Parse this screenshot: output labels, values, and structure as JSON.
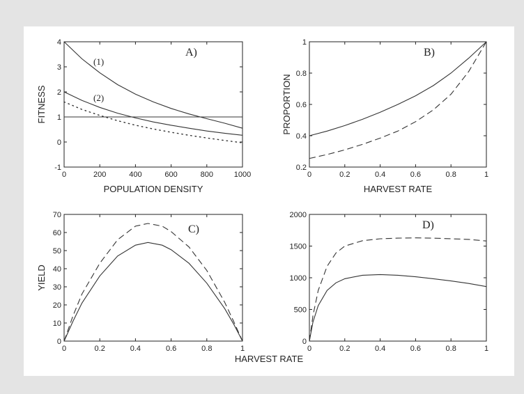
{
  "figure": {
    "shared_xlabel": "HARVEST RATE"
  },
  "chart_data": [
    {
      "panel": "A)",
      "type": "line",
      "xlabel": "POPULATION DENSITY",
      "ylabel": "FITNESS",
      "xlim": [
        0,
        1000
      ],
      "ylim": [
        -1,
        4
      ],
      "xticks": [
        "0",
        "200",
        "400",
        "600",
        "800",
        "1000"
      ],
      "yticks": [
        "-1",
        "0",
        "1",
        "2",
        "3",
        "4"
      ],
      "curve_labels": [
        "(1)",
        "(2)"
      ],
      "series": [
        {
          "name": "(1)",
          "style": "solid",
          "x": [
            0,
            100,
            200,
            300,
            400,
            500,
            600,
            700,
            800,
            900,
            1000
          ],
          "y": [
            4.0,
            3.32,
            2.76,
            2.29,
            1.91,
            1.6,
            1.34,
            1.12,
            0.93,
            0.75,
            0.55
          ]
        },
        {
          "name": "(2)",
          "style": "solid",
          "x": [
            0,
            100,
            200,
            300,
            400,
            500,
            600,
            700,
            800,
            900,
            1000
          ],
          "y": [
            2.0,
            1.66,
            1.38,
            1.15,
            0.96,
            0.8,
            0.67,
            0.55,
            0.44,
            0.35,
            0.27
          ]
        },
        {
          "style": "dotted",
          "x": [
            0,
            100,
            200,
            300,
            400,
            500,
            600,
            700,
            800,
            900,
            1000
          ],
          "y": [
            1.6,
            1.3,
            1.06,
            0.85,
            0.67,
            0.52,
            0.39,
            0.27,
            0.16,
            0.06,
            -0.03
          ]
        },
        {
          "style": "solid",
          "x": [
            0,
            1000
          ],
          "y": [
            1.0,
            1.0
          ]
        }
      ]
    },
    {
      "panel": "B)",
      "type": "line",
      "xlabel": "HARVEST RATE",
      "ylabel": "PROPORTION",
      "xlim": [
        0,
        1
      ],
      "ylim": [
        0.2,
        1
      ],
      "xticks": [
        "0",
        "0.2",
        "0.4",
        "0.6",
        "0.8",
        "1"
      ],
      "yticks": [
        "0.2",
        "0.4",
        "0.6",
        "0.8",
        "1"
      ],
      "series": [
        {
          "style": "solid",
          "x": [
            0,
            0.1,
            0.2,
            0.3,
            0.4,
            0.5,
            0.6,
            0.7,
            0.8,
            0.9,
            1.0
          ],
          "y": [
            0.4,
            0.43,
            0.465,
            0.505,
            0.55,
            0.6,
            0.655,
            0.72,
            0.8,
            0.895,
            1.0
          ]
        },
        {
          "style": "dashed",
          "x": [
            0,
            0.1,
            0.2,
            0.3,
            0.4,
            0.5,
            0.6,
            0.7,
            0.8,
            0.9,
            1.0
          ],
          "y": [
            0.255,
            0.28,
            0.31,
            0.345,
            0.385,
            0.43,
            0.49,
            0.565,
            0.665,
            0.81,
            1.0
          ]
        }
      ]
    },
    {
      "panel": "C)",
      "type": "line",
      "xlabel": "",
      "ylabel": "YIELD",
      "xlim": [
        0,
        1
      ],
      "ylim": [
        0,
        70
      ],
      "xticks": [
        "0",
        "0.2",
        "0.4",
        "0.6",
        "0.8",
        "1"
      ],
      "yticks": [
        "0",
        "10",
        "20",
        "30",
        "40",
        "50",
        "60",
        "70"
      ],
      "series": [
        {
          "style": "solid",
          "x": [
            0,
            0.05,
            0.1,
            0.2,
            0.3,
            0.4,
            0.47,
            0.55,
            0.6,
            0.7,
            0.8,
            0.9,
            0.95,
            1.0
          ],
          "y": [
            0,
            11,
            21,
            36,
            47,
            53,
            54.5,
            53,
            50.5,
            43,
            32,
            18,
            9.5,
            0
          ]
        },
        {
          "style": "dashed",
          "x": [
            0,
            0.05,
            0.1,
            0.2,
            0.3,
            0.4,
            0.47,
            0.55,
            0.6,
            0.7,
            0.8,
            0.9,
            0.95,
            1.0
          ],
          "y": [
            0,
            14,
            26,
            43,
            56,
            63.5,
            65,
            63.5,
            60.5,
            52,
            39,
            21.5,
            11,
            0
          ]
        }
      ]
    },
    {
      "panel": "D)",
      "type": "line",
      "xlabel": "",
      "ylabel": "",
      "xlim": [
        0,
        1
      ],
      "ylim": [
        0,
        2000
      ],
      "xticks": [
        "0",
        "0.2",
        "0.4",
        "0.6",
        "0.8",
        "1"
      ],
      "yticks": [
        "0",
        "500",
        "1000",
        "1500",
        "2000"
      ],
      "series": [
        {
          "style": "solid",
          "x": [
            0,
            0.02,
            0.05,
            0.1,
            0.15,
            0.2,
            0.3,
            0.4,
            0.5,
            0.6,
            0.7,
            0.8,
            0.9,
            1.0
          ],
          "y": [
            0,
            300,
            560,
            800,
            920,
            985,
            1040,
            1050,
            1040,
            1015,
            985,
            950,
            910,
            860
          ]
        },
        {
          "style": "dashed",
          "x": [
            0,
            0.02,
            0.05,
            0.1,
            0.15,
            0.2,
            0.3,
            0.4,
            0.5,
            0.6,
            0.7,
            0.8,
            0.9,
            1.0
          ],
          "y": [
            0,
            400,
            800,
            1180,
            1390,
            1500,
            1585,
            1615,
            1625,
            1630,
            1625,
            1615,
            1605,
            1580
          ]
        }
      ]
    }
  ]
}
